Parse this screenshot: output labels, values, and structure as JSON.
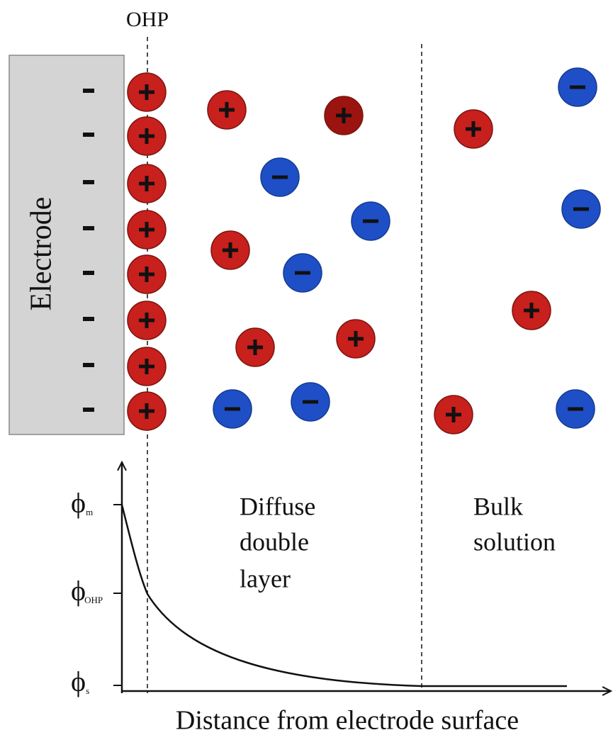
{
  "labels": {
    "ohp": "OHP",
    "electrode": "Electrode",
    "diffuse": [
      "Diffuse",
      "double",
      "layer"
    ],
    "bulk": [
      "Bulk",
      "solution"
    ],
    "x_axis": "Distance from electrode surface"
  },
  "potential_labels": [
    {
      "symbol": "ϕ",
      "subscript": "m"
    },
    {
      "symbol": "ϕ",
      "subscript": "OHP"
    },
    {
      "symbol": "ϕ",
      "subscript": "s"
    }
  ]
}
